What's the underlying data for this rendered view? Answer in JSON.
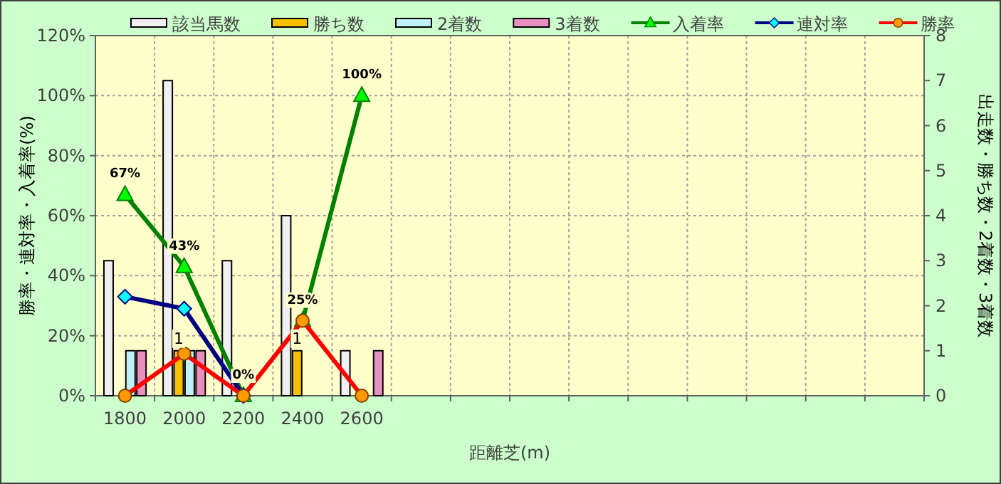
{
  "chart_data": {
    "type": "bar",
    "xlabel": "距離芝(m)",
    "ylabel": "勝率・連対率・入着率(%)",
    "y2label": "出走数・勝ち数・2着数・3着数",
    "categories": [
      "1800",
      "2000",
      "2200",
      "2400",
      "2600",
      null,
      null,
      null,
      null,
      null,
      null,
      null,
      null,
      null
    ],
    "ylim": [
      0,
      120
    ],
    "yticks": [
      {
        "value": 0,
        "label": "0%"
      },
      {
        "value": 20,
        "label": "20%"
      },
      {
        "value": 40,
        "label": "40%"
      },
      {
        "value": 60,
        "label": "60%"
      },
      {
        "value": 80,
        "label": "80%"
      },
      {
        "value": 100,
        "label": "100%"
      },
      {
        "value": 120,
        "label": "120%"
      }
    ],
    "y2lim": [
      0,
      8
    ],
    "y2ticks": [
      0,
      1,
      2,
      3,
      4,
      5,
      6,
      7,
      8
    ],
    "grid": true,
    "legend": "top",
    "series": [
      {
        "name": "該当馬数",
        "axis": "y2",
        "color": "#f0f0f0",
        "values": [
          3,
          7,
          3,
          4,
          1,
          null,
          null,
          null,
          null,
          null,
          null,
          null,
          null,
          null
        ]
      },
      {
        "name": "勝ち数",
        "axis": "y2",
        "color": "#f5c000",
        "values": [
          0,
          1,
          0,
          1,
          0,
          null,
          null,
          null,
          null,
          null,
          null,
          null,
          null,
          null
        ],
        "value_labels": [
          null,
          "1",
          null,
          "1",
          null,
          null,
          null,
          null,
          null,
          null,
          null,
          null,
          null,
          null
        ]
      },
      {
        "name": "2着数",
        "axis": "y2",
        "color": "#c0f0f8",
        "values": [
          1,
          1,
          0,
          0,
          0,
          null,
          null,
          null,
          null,
          null,
          null,
          null,
          null,
          null
        ]
      },
      {
        "name": "3着数",
        "axis": "y2",
        "color": "#e890c0",
        "values": [
          1,
          1,
          0,
          0,
          1,
          null,
          null,
          null,
          null,
          null,
          null,
          null,
          null,
          null
        ]
      },
      {
        "name": "入着率",
        "type": "line",
        "color": "#008000",
        "marker": "triangle",
        "values": [
          67,
          43,
          0,
          25,
          100,
          null,
          null,
          null,
          null,
          null,
          null,
          null,
          null,
          null
        ],
        "value_labels": [
          "67%",
          "43%",
          "0%",
          "25%",
          "100%",
          null,
          null,
          null,
          null,
          null,
          null,
          null,
          null,
          null
        ]
      },
      {
        "name": "連対率",
        "type": "line",
        "color": "#000080",
        "marker": "diamond",
        "values": [
          33,
          29,
          0,
          null,
          null,
          null,
          null,
          null,
          null,
          null,
          null,
          null,
          null,
          null
        ]
      },
      {
        "name": "勝率",
        "type": "line",
        "color": "#ff0000",
        "marker": "circle",
        "values": [
          0,
          14,
          0,
          25,
          0,
          null,
          null,
          null,
          null,
          null,
          null,
          null,
          null,
          null
        ]
      }
    ]
  }
}
